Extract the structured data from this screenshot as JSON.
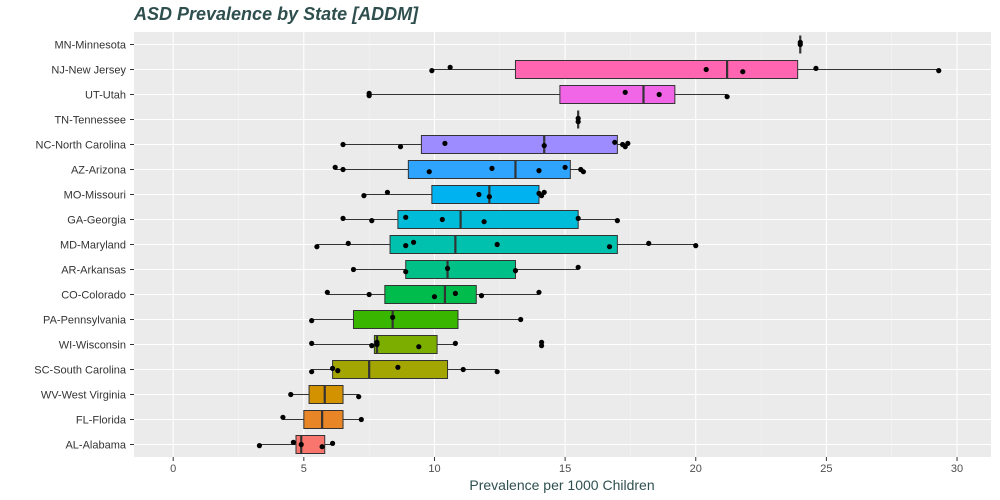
{
  "chart_data": {
    "type": "boxplot",
    "title": "ASD Prevalence by State [ADDM]",
    "xlabel": "Prevalence per 1000 Children",
    "ylabel": "",
    "xlim": [
      -1.5,
      31.3
    ],
    "xticks": [
      0,
      5,
      10,
      15,
      20,
      25,
      30
    ],
    "grid": true,
    "orientation": "horizontal",
    "categories": [
      {
        "label": "MN-Minnesota",
        "color": "#ff61cc",
        "min": 24.0,
        "q1": 24.0,
        "median": 24.0,
        "q3": 24.0,
        "max": 24.0,
        "points": [
          24.0,
          24.0
        ]
      },
      {
        "label": "NJ-New Jersey",
        "color": "#ff65b0",
        "min": 9.9,
        "q1": 13.1,
        "median": 21.2,
        "q3": 23.9,
        "max": 29.3,
        "points": [
          9.9,
          10.6,
          20.4,
          21.8,
          24.6,
          29.3
        ]
      },
      {
        "label": "UT-Utah",
        "color": "#f066e6",
        "min": 7.5,
        "q1": 14.8,
        "median": 18.0,
        "q3": 19.2,
        "max": 21.2,
        "points": [
          7.5,
          7.5,
          17.3,
          18.6,
          21.2
        ]
      },
      {
        "label": "TN-Tennessee",
        "color": "#c77cff",
        "min": 15.5,
        "q1": 15.5,
        "median": 15.5,
        "q3": 15.5,
        "max": 15.5,
        "points": [
          15.5,
          15.5
        ]
      },
      {
        "label": "NC-North Carolina",
        "color": "#9d8cff",
        "min": 6.5,
        "q1": 9.5,
        "median": 14.2,
        "q3": 17.0,
        "max": 17.4,
        "points": [
          6.5,
          8.7,
          10.4,
          14.2,
          16.9,
          17.2,
          17.3,
          17.4
        ]
      },
      {
        "label": "AZ-Arizona",
        "color": "#2ea4ff",
        "min": 6.2,
        "q1": 9.0,
        "median": 13.1,
        "q3": 15.2,
        "max": 15.7,
        "points": [
          6.2,
          6.5,
          9.8,
          12.2,
          14.0,
          15.0,
          15.6,
          15.7
        ]
      },
      {
        "label": "MO-Missouri",
        "color": "#00b2f0",
        "min": 7.3,
        "q1": 9.9,
        "median": 12.1,
        "q3": 14.0,
        "max": 14.2,
        "points": [
          7.3,
          8.2,
          11.7,
          12.1,
          14.0,
          14.1,
          14.2
        ]
      },
      {
        "label": "GA-Georgia",
        "color": "#00bcd8",
        "min": 6.5,
        "q1": 8.6,
        "median": 11.0,
        "q3": 15.5,
        "max": 17.0,
        "points": [
          6.5,
          7.6,
          8.9,
          10.3,
          11.9,
          15.5,
          17.0
        ]
      },
      {
        "label": "MD-Maryland",
        "color": "#00c1ad",
        "min": 5.5,
        "q1": 8.3,
        "median": 10.8,
        "q3": 17.0,
        "max": 20.0,
        "points": [
          5.5,
          6.7,
          8.9,
          9.2,
          12.4,
          16.7,
          18.2,
          20.0
        ]
      },
      {
        "label": "AR-Arkansas",
        "color": "#00c087",
        "min": 6.9,
        "q1": 8.9,
        "median": 10.5,
        "q3": 13.1,
        "max": 15.5,
        "points": [
          6.9,
          8.9,
          10.5,
          13.1,
          15.5
        ]
      },
      {
        "label": "CO-Colorado",
        "color": "#00bc4d",
        "min": 5.9,
        "q1": 8.1,
        "median": 10.4,
        "q3": 11.6,
        "max": 14.0,
        "points": [
          5.9,
          7.5,
          10.0,
          10.8,
          11.8,
          14.0
        ]
      },
      {
        "label": "PA-Pennsylvania",
        "color": "#39b600",
        "min": 5.3,
        "q1": 6.9,
        "median": 8.4,
        "q3": 10.9,
        "max": 13.3,
        "points": [
          5.3,
          8.4,
          13.3
        ]
      },
      {
        "label": "WI-Wisconsin",
        "color": "#7cae00",
        "min": 5.3,
        "q1": 7.7,
        "median": 7.8,
        "q3": 10.1,
        "max": 10.8,
        "points": [
          5.3,
          7.6,
          7.8,
          7.8,
          9.4,
          10.8,
          14.1,
          14.1
        ]
      },
      {
        "label": "SC-South Carolina",
        "color": "#a3a500",
        "min": 5.3,
        "q1": 6.1,
        "median": 7.5,
        "q3": 10.5,
        "max": 12.4,
        "points": [
          5.3,
          6.1,
          6.3,
          8.6,
          11.1,
          12.4
        ]
      },
      {
        "label": "WV-West Virginia",
        "color": "#d39200",
        "min": 4.5,
        "q1": 5.2,
        "median": 5.8,
        "q3": 6.5,
        "max": 7.1,
        "points": [
          4.5,
          7.1
        ]
      },
      {
        "label": "FL-Florida",
        "color": "#e88526",
        "min": 4.2,
        "q1": 5.0,
        "median": 5.7,
        "q3": 6.5,
        "max": 7.2,
        "points": [
          4.2,
          7.2
        ]
      },
      {
        "label": "AL-Alabama",
        "color": "#f8766d",
        "min": 3.3,
        "q1": 4.7,
        "median": 4.9,
        "q3": 5.8,
        "max": 6.1,
        "points": [
          3.3,
          4.6,
          4.9,
          5.7,
          6.1
        ]
      }
    ]
  }
}
